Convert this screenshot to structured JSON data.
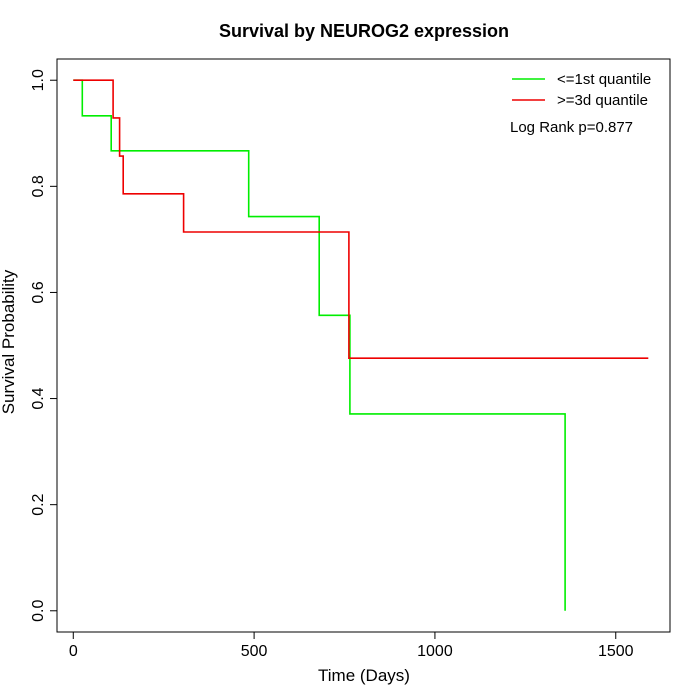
{
  "chart_data": {
    "type": "line",
    "step": true,
    "title": "Survival by NEUROG2 expression",
    "xlabel": "Time (Days)",
    "ylabel": "Survival Probability",
    "xlim": [
      -45,
      1650
    ],
    "ylim": [
      -0.04,
      1.04
    ],
    "xticks": [
      0,
      500,
      1000,
      1500
    ],
    "xtick_labels": [
      "0",
      "500",
      "1000",
      "1500"
    ],
    "yticks": [
      0.0,
      0.2,
      0.4,
      0.6,
      0.8,
      1.0
    ],
    "ytick_labels": [
      "0.0",
      "0.2",
      "0.4",
      "0.6",
      "0.8",
      "1.0"
    ],
    "grid": false,
    "legend_position": "top-right",
    "annotation": "Log Rank p=0.877",
    "series": [
      {
        "name": "<=1st quantile",
        "color": "#00ee00",
        "points": [
          [
            0,
            1.0
          ],
          [
            25,
            1.0
          ],
          [
            25,
            0.933
          ],
          [
            105,
            0.933
          ],
          [
            105,
            0.867
          ],
          [
            485,
            0.867
          ],
          [
            485,
            0.743
          ],
          [
            680,
            0.743
          ],
          [
            680,
            0.557
          ],
          [
            765,
            0.557
          ],
          [
            765,
            0.371
          ],
          [
            1360,
            0.371
          ],
          [
            1360,
            0.0
          ]
        ]
      },
      {
        "name": ">=3d quantile",
        "color": "#ee0000",
        "points": [
          [
            0,
            1.0
          ],
          [
            110,
            1.0
          ],
          [
            110,
            0.929
          ],
          [
            128,
            0.929
          ],
          [
            128,
            0.857
          ],
          [
            138,
            0.857
          ],
          [
            138,
            0.786
          ],
          [
            305,
            0.786
          ],
          [
            305,
            0.714
          ],
          [
            762,
            0.714
          ],
          [
            762,
            0.476
          ],
          [
            1590,
            0.476
          ]
        ]
      }
    ]
  }
}
